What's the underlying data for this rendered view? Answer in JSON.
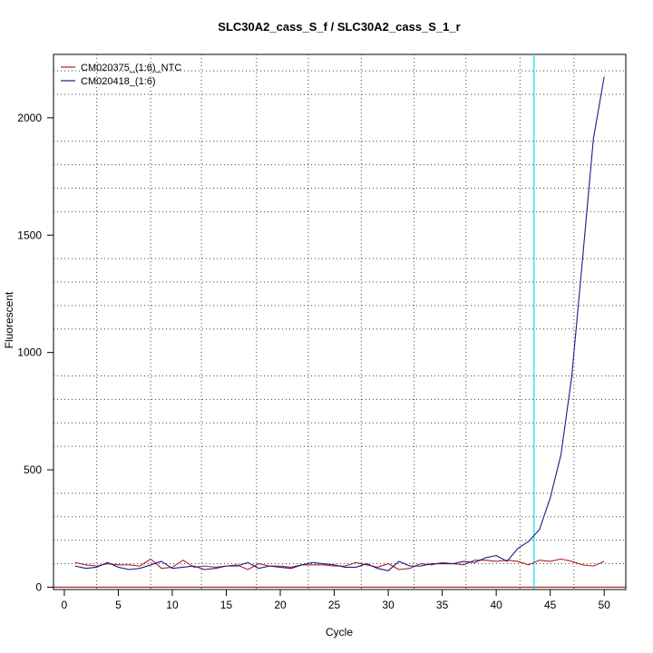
{
  "chart_data": {
    "type": "line",
    "title": "SLC30A2_cass_S_f / SLC30A2_cass_S_1_r",
    "xlabel": "Cycle",
    "ylabel": "Fluorescent",
    "xlim": [
      -1,
      52
    ],
    "ylim": [
      -10,
      2270
    ],
    "xticks": [
      0,
      5,
      10,
      15,
      20,
      25,
      30,
      35,
      40,
      45,
      50
    ],
    "yticks": [
      0,
      500,
      1000,
      1500,
      2000
    ],
    "grid": true,
    "grid_x": [
      3,
      8,
      12.7,
      17.8,
      22.6,
      27.5,
      32.4,
      37.2,
      42.2,
      47.2
    ],
    "grid_y": [
      100,
      200,
      300,
      400,
      600,
      700,
      800,
      900,
      1100,
      1200,
      1300,
      1400,
      1600,
      1700,
      1800,
      1900,
      2100,
      2200
    ],
    "legend_position": "top-left",
    "threshold": {
      "cycle": 43.5,
      "color": "#00e5ee"
    },
    "baseline": {
      "value": 0,
      "color": "#8b0000"
    },
    "x": [
      1,
      2,
      3,
      4,
      5,
      6,
      7,
      8,
      9,
      10,
      11,
      12,
      13,
      14,
      15,
      16,
      17,
      18,
      19,
      20,
      21,
      22,
      23,
      24,
      25,
      26,
      27,
      28,
      29,
      30,
      31,
      32,
      33,
      34,
      35,
      36,
      37,
      38,
      39,
      40,
      41,
      42,
      43,
      44,
      45,
      46,
      47,
      48,
      49,
      50
    ],
    "series": [
      {
        "name": "CM020375_(1:6)_NTC",
        "color": "#b22222",
        "values": [
          105,
          95,
          90,
          100,
          95,
          95,
          90,
          120,
          80,
          85,
          115,
          85,
          90,
          85,
          90,
          95,
          75,
          100,
          90,
          90,
          85,
          95,
          95,
          95,
          90,
          90,
          105,
          95,
          85,
          100,
          75,
          80,
          100,
          95,
          105,
          100,
          95,
          115,
          115,
          110,
          115,
          110,
          95,
          115,
          110,
          120,
          110,
          95,
          90,
          110
        ]
      },
      {
        "name": "CM020418_(1:6)",
        "color": "#1a1a8c",
        "values": [
          90,
          80,
          85,
          105,
          85,
          75,
          80,
          95,
          110,
          80,
          85,
          90,
          75,
          80,
          90,
          90,
          105,
          80,
          90,
          85,
          80,
          95,
          105,
          100,
          95,
          85,
          85,
          100,
          80,
          70,
          110,
          90,
          90,
          100,
          100,
          100,
          110,
          105,
          125,
          135,
          110,
          165,
          195,
          245,
          380,
          565,
          900,
          1400,
          1910,
          2175
        ]
      }
    ]
  }
}
